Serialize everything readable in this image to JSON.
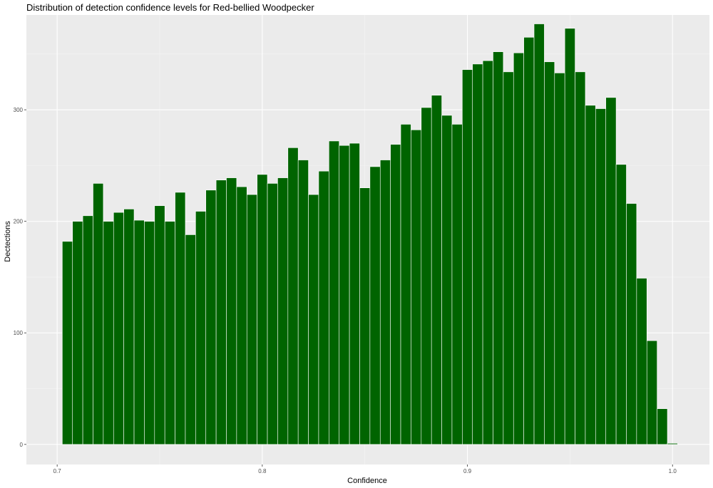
{
  "colors": {
    "panel_background": "#ebebeb",
    "grid_major": "#ffffff",
    "grid_minor": "#f5f5f5",
    "bar_fill": "#006400",
    "bar_outline": "#ffffff",
    "tick_text": "#4d4d4d"
  },
  "chart_data": {
    "type": "bar",
    "title": "Distribution of detection confidence levels for Red-bellied Woodpecker",
    "xlabel": "Confidence",
    "ylabel": "Dectections",
    "xlim": [
      0.685,
      1.018
    ],
    "ylim": [
      -18,
      385
    ],
    "x_ticks": [
      0.7,
      0.8,
      0.9,
      1.0
    ],
    "x_tick_labels": [
      "0.7",
      "0.8",
      "0.9",
      "1.0"
    ],
    "y_ticks": [
      0,
      100,
      200,
      300
    ],
    "y_tick_labels": [
      "0",
      "100",
      "200",
      "300"
    ],
    "grid": true,
    "bin_width": 0.005,
    "bin_centers": [
      0.705,
      0.71,
      0.715,
      0.72,
      0.725,
      0.73,
      0.735,
      0.74,
      0.745,
      0.75,
      0.755,
      0.76,
      0.765,
      0.77,
      0.775,
      0.78,
      0.785,
      0.79,
      0.795,
      0.8,
      0.805,
      0.81,
      0.815,
      0.82,
      0.825,
      0.83,
      0.835,
      0.84,
      0.845,
      0.85,
      0.855,
      0.86,
      0.865,
      0.87,
      0.875,
      0.88,
      0.885,
      0.89,
      0.895,
      0.9,
      0.905,
      0.91,
      0.915,
      0.92,
      0.925,
      0.93,
      0.935,
      0.94,
      0.945,
      0.95,
      0.955,
      0.96,
      0.965,
      0.97,
      0.975,
      0.98,
      0.985,
      0.99,
      0.995,
      1.0
    ],
    "values": [
      182,
      200,
      205,
      234,
      200,
      208,
      211,
      201,
      200,
      214,
      200,
      226,
      188,
      209,
      228,
      237,
      239,
      231,
      224,
      242,
      234,
      239,
      266,
      255,
      224,
      245,
      272,
      268,
      270,
      230,
      249,
      255,
      269,
      287,
      282,
      302,
      313,
      295,
      287,
      336,
      341,
      344,
      352,
      334,
      351,
      365,
      377,
      343,
      333,
      373,
      334,
      304,
      301,
      311,
      251,
      216,
      149,
      93,
      32,
      1
    ]
  }
}
